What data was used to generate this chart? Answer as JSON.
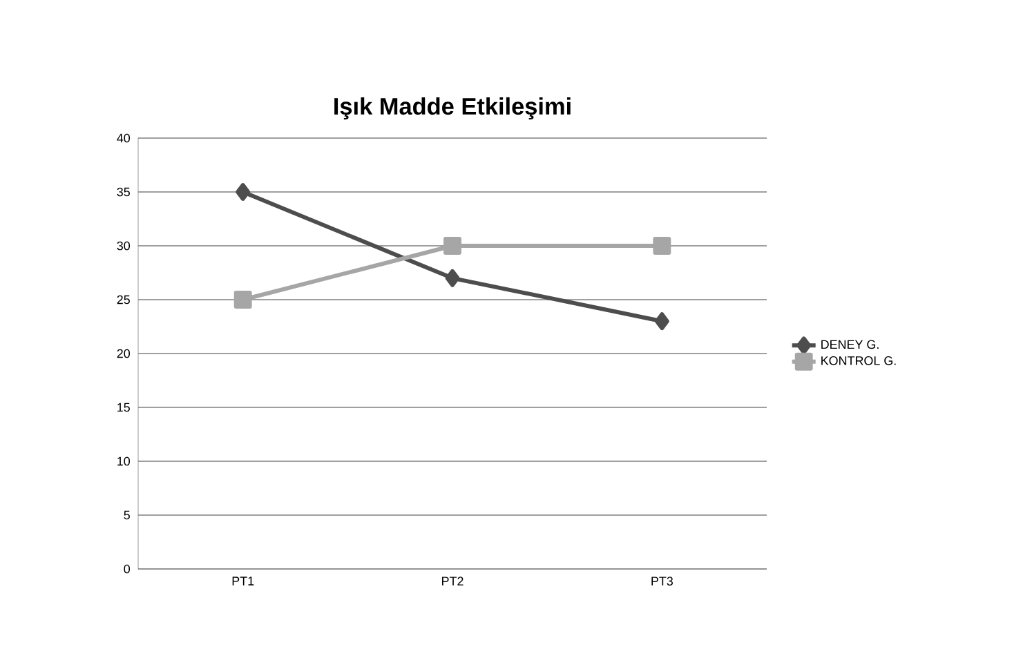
{
  "chart_data": {
    "type": "line",
    "title": "Işık Madde Etkileşimi",
    "categories": [
      "PT1",
      "PT2",
      "PT3"
    ],
    "series": [
      {
        "name": "DENEY G.",
        "color": "#4d4d4d",
        "values": [
          35,
          27,
          23
        ],
        "marker": "diamond"
      },
      {
        "name": "KONTROL G.",
        "color": "#a6a6a6",
        "values": [
          25,
          30,
          30
        ],
        "marker": "square"
      }
    ],
    "ylim": [
      0,
      40
    ],
    "yticks": [
      0,
      5,
      10,
      15,
      20,
      25,
      30,
      35,
      40
    ],
    "grid": "y",
    "legend": "right"
  }
}
